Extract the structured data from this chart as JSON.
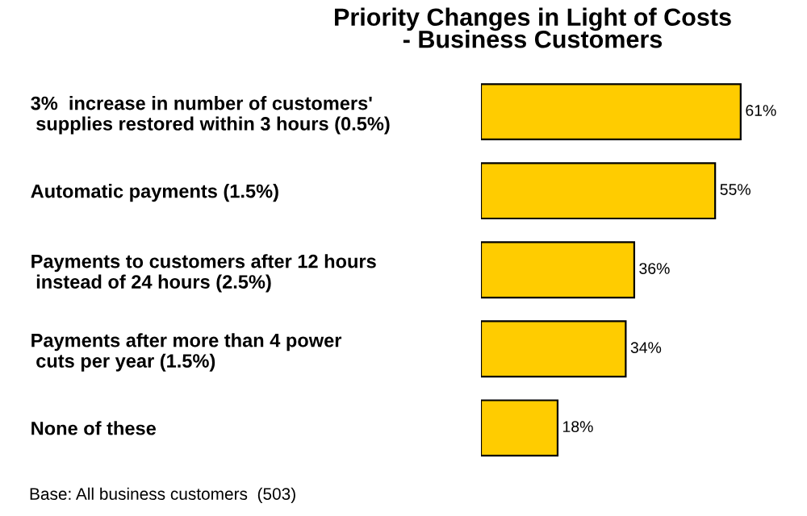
{
  "chart_data": {
    "type": "bar",
    "orientation": "horizontal",
    "title": "Priority Changes in Light of Costs\n- Business Customers",
    "categories": [
      "3%  increase in number of customers'\n supplies restored within 3 hours (0.5%)",
      "Automatic payments (1.5%)",
      "Payments to customers after 12 hours\n instead of 24 hours (2.5%)",
      "Payments after more than 4 power\n cuts per year (1.5%)",
      "None of these"
    ],
    "values": [
      61,
      55,
      36,
      34,
      18
    ],
    "value_labels": [
      "61%",
      "55%",
      "36%",
      "34%",
      "18%"
    ],
    "color": "#ffcc00",
    "annotations": [
      "Base: All business customers  (503)"
    ]
  }
}
